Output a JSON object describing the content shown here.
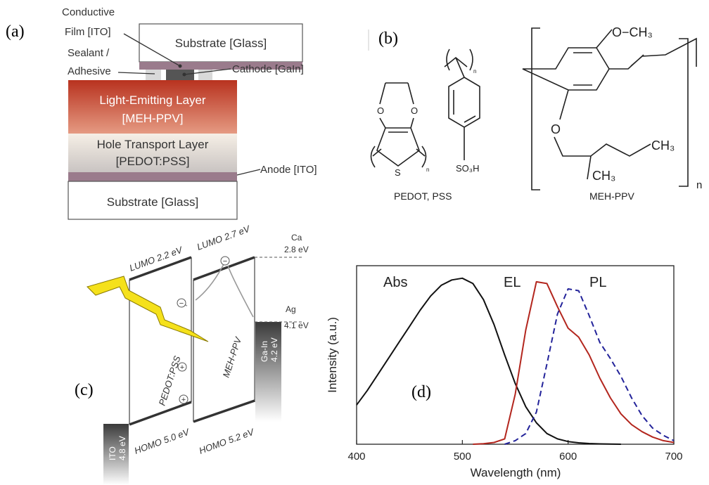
{
  "panels": {
    "a": {
      "label": "(a)",
      "conductive_film": [
        "Conductive",
        "Film [ITO]"
      ],
      "sealant": [
        "Sealant /",
        "Adhesive"
      ],
      "top_substrate": "Substrate [Glass]",
      "cathode": "Cathode [GaIn]",
      "light_emitting_layer": [
        "Light-Emitting Layer",
        "[MEH-PPV]"
      ],
      "hole_transport_layer": [
        "Hole Transport Layer",
        "[PEDOT:PSS]"
      ],
      "anode": "Anode [ITO]",
      "bottom_substrate": "Substrate [Glass]"
    },
    "b": {
      "label": "(b)",
      "pedot_pss_atoms": [
        "O",
        "O",
        "S",
        "n",
        "n",
        "SO₃H"
      ],
      "pedot_pss_name": "PEDOT, PSS",
      "meh_ppv_atoms": [
        "O−CH₃",
        "O",
        "CH₃",
        "CH₃",
        "n"
      ],
      "meh_ppv_name": "MEH-PPV"
    },
    "c": {
      "label": "(c)",
      "lumo_pedot": "LUMO 2.2 eV",
      "lumo_meh": "LUMO 2.7 eV",
      "ca": [
        "Ca",
        "2.8 eV"
      ],
      "ag": [
        "Ag",
        "4.1 eV"
      ],
      "gain": [
        "Ga-In",
        "4.2 eV"
      ],
      "ito": [
        "ITO",
        "4.8 eV"
      ],
      "homo_pedot": "HOMO 5.0 eV",
      "homo_meh": "HOMO 5.2 eV",
      "pedot_layer": "PEDOT:PSS",
      "meh_layer": "MEH-PPV",
      "charges": [
        "−",
        "−",
        "+",
        "+"
      ]
    },
    "d": {
      "label": "(d)",
      "chart_data": {
        "type": "line",
        "xlabel": "Wavelength (nm)",
        "ylabel": "Intensity (a.u.)",
        "x": [
          400,
          410,
          420,
          430,
          440,
          450,
          460,
          470,
          480,
          490,
          500,
          510,
          520,
          530,
          540,
          550,
          560,
          570,
          580,
          590,
          600,
          610,
          620,
          630,
          640,
          650,
          660,
          670,
          680,
          690,
          700
        ],
        "xlim": [
          400,
          700
        ],
        "xticks": [
          400,
          500,
          600,
          700
        ],
        "ylim": [
          0,
          1
        ],
        "series": [
          {
            "name": "Abs",
            "color": "#111111",
            "dash": false,
            "values": [
              0.22,
              0.3,
              0.39,
              0.48,
              0.57,
              0.66,
              0.75,
              0.83,
              0.89,
              0.92,
              0.93,
              0.9,
              0.81,
              0.67,
              0.5,
              0.34,
              0.21,
              0.12,
              0.06,
              0.03,
              0.015,
              0.008,
              0.004,
              0.002,
              0.001,
              0,
              null,
              null,
              null,
              null,
              null
            ]
          },
          {
            "name": "EL",
            "color": "#b3261e",
            "dash": false,
            "values": [
              null,
              null,
              null,
              null,
              null,
              null,
              null,
              null,
              null,
              null,
              null,
              0,
              0.003,
              0.01,
              0.03,
              0.28,
              0.64,
              0.91,
              0.9,
              0.77,
              0.65,
              0.6,
              0.5,
              0.37,
              0.26,
              0.17,
              0.11,
              0.07,
              0.04,
              0.02,
              0.01
            ]
          },
          {
            "name": "PL",
            "color": "#23239a",
            "dash": true,
            "values": [
              null,
              null,
              null,
              null,
              null,
              null,
              null,
              null,
              null,
              null,
              null,
              null,
              null,
              null,
              0,
              0.02,
              0.06,
              0.18,
              0.45,
              0.73,
              0.87,
              0.86,
              0.72,
              0.57,
              0.48,
              0.38,
              0.26,
              0.16,
              0.09,
              0.05,
              0.02
            ]
          }
        ]
      }
    }
  }
}
